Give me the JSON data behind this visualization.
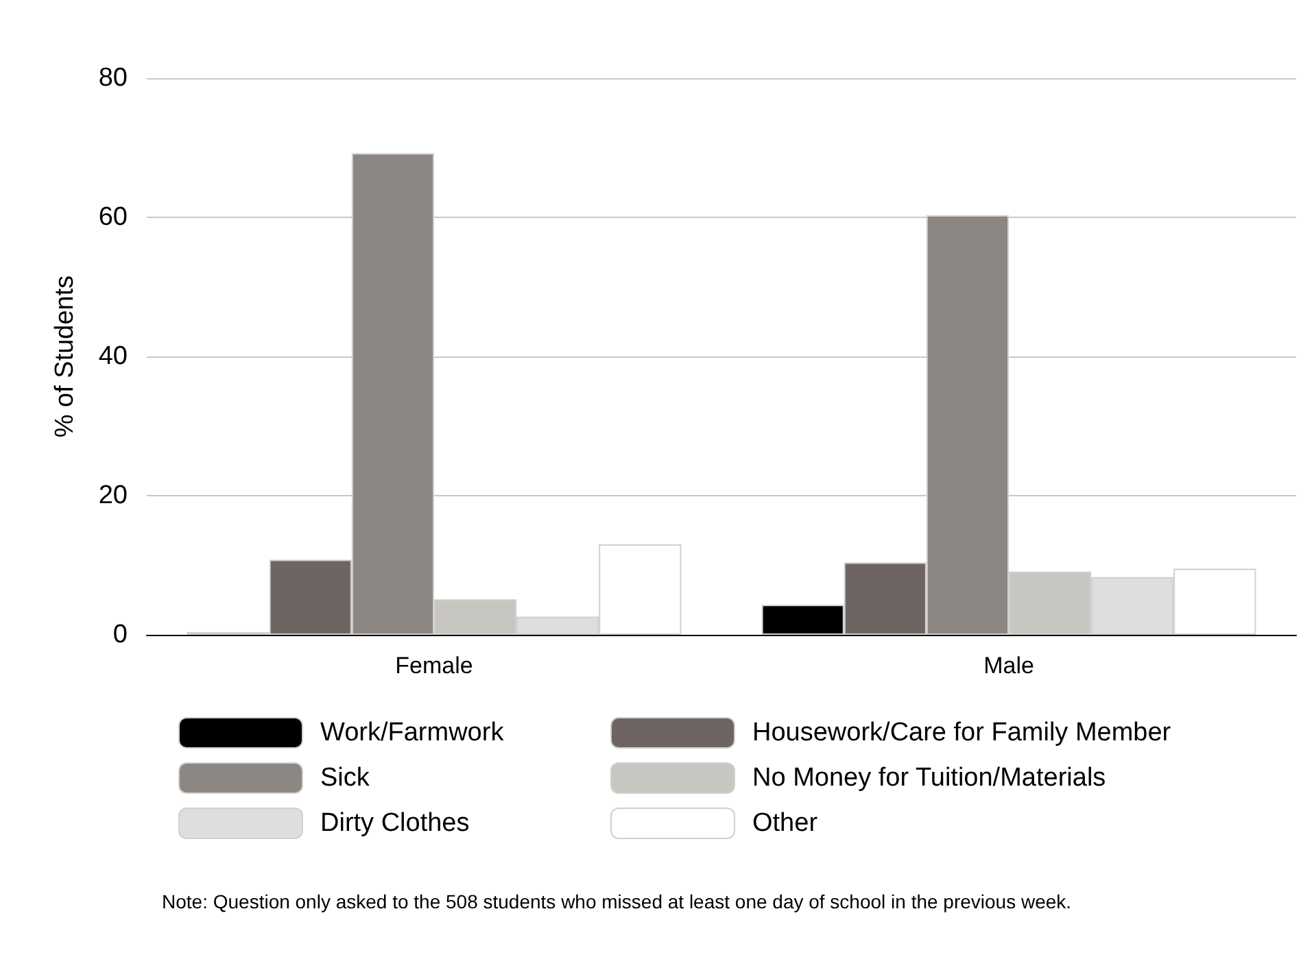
{
  "chart_data": {
    "type": "bar",
    "ylabel": "% of Students",
    "categories": [
      "Female",
      "Male"
    ],
    "series": [
      {
        "name": "Work/Farmwork",
        "color": "#000000",
        "values": [
          0.4,
          4.3
        ]
      },
      {
        "name": "Housework/Care for Family Member",
        "color": "#6e6562",
        "values": [
          10.8,
          10.4
        ]
      },
      {
        "name": "Sick",
        "color": "#8c8782",
        "values": [
          69.2,
          60.3
        ]
      },
      {
        "name": "No Money for Tuition/Materials",
        "color": "#c8c6c1",
        "values": [
          5.1,
          9.1
        ]
      },
      {
        "name": "Dirty Clothes",
        "color": "#dedee0",
        "values": [
          2.6,
          8.3
        ]
      },
      {
        "name": "Other",
        "color": "#ffffff",
        "values": [
          13.0,
          9.5
        ]
      }
    ],
    "ylim": [
      0,
      80
    ],
    "yticks": [
      0,
      20,
      40,
      60,
      80
    ],
    "grid": "y",
    "legend": "bottom",
    "annotations": [
      "Note: Question only asked to the 508 students who missed at least one day of school in the previous week."
    ]
  }
}
